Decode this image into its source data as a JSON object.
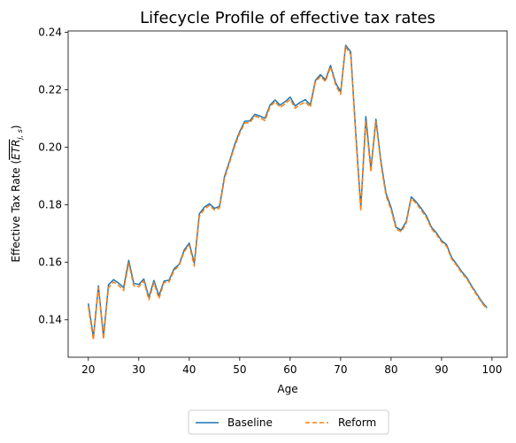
{
  "chart_data": {
    "type": "line",
    "title": "Lifecycle Profile of effective tax rates",
    "xlabel": "Age",
    "ylabel": "Effective Tax Rate ($\\bar{ETR}_{j,s}$)",
    "ylabel_main": "Effective Tax Rate (",
    "ylabel_math": "ETR",
    "ylabel_sub": "j, s",
    "ylabel_close": ")",
    "xlim": [
      16,
      103
    ],
    "ylim": [
      0.127,
      0.2405
    ],
    "xticks": [
      20,
      30,
      40,
      50,
      60,
      70,
      80,
      90,
      100
    ],
    "xtick_labels": [
      "20",
      "30",
      "40",
      "50",
      "60",
      "70",
      "80",
      "90",
      "100"
    ],
    "yticks": [
      0.14,
      0.16,
      0.18,
      0.2,
      0.22,
      0.24
    ],
    "ytick_labels": [
      "0.14",
      "0.16",
      "0.18",
      "0.20",
      "0.22",
      "0.24"
    ],
    "legend_position": "bottom-center-outside",
    "x": [
      20,
      21,
      22,
      23,
      24,
      25,
      26,
      27,
      28,
      29,
      30,
      31,
      32,
      33,
      34,
      35,
      36,
      37,
      38,
      39,
      40,
      41,
      42,
      43,
      44,
      45,
      46,
      47,
      48,
      49,
      50,
      51,
      52,
      53,
      54,
      55,
      56,
      57,
      58,
      59,
      60,
      61,
      62,
      63,
      64,
      65,
      66,
      67,
      68,
      69,
      70,
      71,
      72,
      73,
      74,
      75,
      76,
      77,
      78,
      79,
      80,
      81,
      82,
      83,
      84,
      85,
      86,
      87,
      88,
      89,
      90,
      91,
      92,
      93,
      94,
      95,
      96,
      97,
      98,
      99
    ],
    "series": [
      {
        "name": "Baseline",
        "color": "#1f77b4",
        "style": "solid",
        "values": [
          0.1457,
          0.134,
          0.1518,
          0.1343,
          0.1522,
          0.154,
          0.1528,
          0.1512,
          0.1607,
          0.1527,
          0.1523,
          0.1542,
          0.1478,
          0.1537,
          0.1484,
          0.1535,
          0.1538,
          0.1578,
          0.1593,
          0.1643,
          0.1667,
          0.1597,
          0.1769,
          0.1792,
          0.1804,
          0.1788,
          0.1795,
          0.19,
          0.1953,
          0.201,
          0.2055,
          0.2091,
          0.2092,
          0.2115,
          0.2109,
          0.2101,
          0.2147,
          0.2165,
          0.2147,
          0.2159,
          0.2175,
          0.2144,
          0.2157,
          0.2166,
          0.2148,
          0.2233,
          0.2253,
          0.2235,
          0.2285,
          0.2225,
          0.2193,
          0.2355,
          0.2332,
          0.205,
          0.179,
          0.2107,
          0.1925,
          0.2098,
          0.195,
          0.184,
          0.1791,
          0.1722,
          0.1712,
          0.1742,
          0.1828,
          0.181,
          0.1787,
          0.1762,
          0.1722,
          0.1702,
          0.1676,
          0.1661,
          0.1617,
          0.1593,
          0.1568,
          0.1547,
          0.1517,
          0.149,
          0.1463,
          0.1442
        ]
      },
      {
        "name": "Reform",
        "color": "#ff7f0e",
        "style": "dashed",
        "values": [
          0.1447,
          0.133,
          0.1512,
          0.1333,
          0.1512,
          0.1532,
          0.152,
          0.1502,
          0.1597,
          0.1519,
          0.1515,
          0.1535,
          0.147,
          0.1529,
          0.1474,
          0.153,
          0.1532,
          0.1572,
          0.1589,
          0.1637,
          0.166,
          0.1587,
          0.176,
          0.1785,
          0.1798,
          0.1782,
          0.1789,
          0.1892,
          0.1947,
          0.2003,
          0.2049,
          0.2085,
          0.2086,
          0.2109,
          0.2103,
          0.2093,
          0.2141,
          0.2159,
          0.2139,
          0.2151,
          0.2167,
          0.2136,
          0.2149,
          0.2158,
          0.214,
          0.2227,
          0.2247,
          0.2229,
          0.228,
          0.2218,
          0.2184,
          0.235,
          0.2323,
          0.2038,
          0.1778,
          0.209,
          0.1915,
          0.209,
          0.194,
          0.1832,
          0.1783,
          0.1716,
          0.1706,
          0.1736,
          0.1822,
          0.1805,
          0.1781,
          0.1756,
          0.1717,
          0.1697,
          0.1671,
          0.1656,
          0.1612,
          0.1589,
          0.1563,
          0.1543,
          0.1513,
          0.1486,
          0.1459,
          0.1438
        ]
      }
    ]
  }
}
